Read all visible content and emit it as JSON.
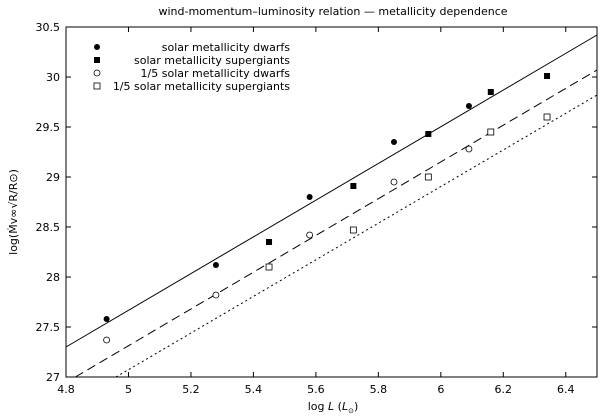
{
  "chart_data": {
    "type": "scatter",
    "title": "wind-momentum–luminosity relation — metallicity dependence",
    "xlabel_prefix": "log ",
    "xlabel_var": "L",
    "xlabel_paren_open": " (",
    "xlabel_unit": "L",
    "xlabel_sub": "⊙",
    "xlabel_paren_close": ")",
    "ylabel_text": "log(Ṁv∞√R/R⊙)",
    "xlim": [
      4.8,
      6.5
    ],
    "ylim": [
      27,
      30.5
    ],
    "xticks": [
      4.8,
      5,
      5.2,
      5.4,
      5.6,
      5.8,
      6,
      6.2,
      6.4
    ],
    "xtick_labels": [
      "4.8",
      "5",
      "5.2",
      "5.4",
      "5.6",
      "5.8",
      "6",
      "6.2",
      "6.4"
    ],
    "yticks": [
      27,
      27.5,
      28,
      28.5,
      29,
      29.5,
      30,
      30.5
    ],
    "ytick_labels": [
      "27",
      "27.5",
      "28",
      "28.5",
      "29",
      "29.5",
      "30",
      "30.5"
    ],
    "grid": false,
    "legend_position": "top-left",
    "series": [
      {
        "name": "solar metallicity dwarfs",
        "marker": "filled-circle",
        "x": [
          4.93,
          5.28,
          5.58,
          5.85,
          6.09
        ],
        "y": [
          27.58,
          28.12,
          28.8,
          29.35,
          29.71
        ]
      },
      {
        "name": "solar metallicity supergiants",
        "marker": "filled-square",
        "x": [
          5.45,
          5.72,
          5.96,
          6.16,
          6.34
        ],
        "y": [
          28.35,
          28.91,
          29.43,
          29.85,
          30.01
        ]
      },
      {
        "name": "1/5 solar metallicity dwarfs",
        "marker": "open-circle",
        "x": [
          4.93,
          5.28,
          5.58,
          5.85,
          6.09
        ],
        "y": [
          27.37,
          27.82,
          28.42,
          28.95,
          29.28
        ]
      },
      {
        "name": "1/5 solar metallicity supergiants",
        "marker": "open-square",
        "x": [
          5.45,
          5.72,
          5.96,
          6.16,
          6.34
        ],
        "y": [
          28.1,
          28.47,
          29.0,
          29.45,
          29.6
        ]
      }
    ],
    "fit_lines": [
      {
        "name": "solar metallicity fit",
        "style": "solid",
        "x": [
          4.8,
          6.5
        ],
        "y": [
          27.3,
          30.42
        ]
      },
      {
        "name": "1/5 solar metallicity fit",
        "style": "dashed",
        "x": [
          4.83,
          6.5
        ],
        "y": [
          27.0,
          30.07
        ]
      },
      {
        "name": "1/5 solar supergiants fit",
        "style": "dotted",
        "x": [
          4.96,
          6.5
        ],
        "y": [
          27.0,
          29.82
        ]
      }
    ]
  }
}
